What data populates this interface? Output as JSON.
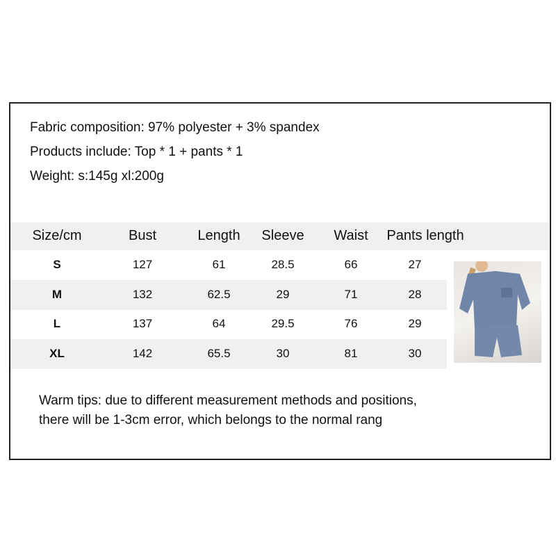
{
  "info": {
    "fabric": "Fabric composition: 97% polyester + 3% spandex",
    "products": "Products include: Top * 1 + pants * 1",
    "weight": "Weight: s:145g  xl:200g"
  },
  "table": {
    "headers": [
      "Size/cm",
      "Bust",
      "Length",
      "Sleeve",
      "Waist",
      "Pants length"
    ],
    "rows": [
      [
        "S",
        "127",
        "61",
        "28.5",
        "66",
        "27"
      ],
      [
        "M",
        "132",
        "62.5",
        "29",
        "71",
        "28"
      ],
      [
        "L",
        "137",
        "64",
        "29.5",
        "76",
        "29"
      ],
      [
        "XL",
        "142",
        "65.5",
        "30",
        "81",
        "30"
      ]
    ]
  },
  "product_image": {
    "garment_color": "#6f86a8"
  },
  "tips": {
    "line1": "Warm tips: due to different measurement methods and positions,",
    "line2": "there will be 1-3cm error, which belongs to the normal rang"
  }
}
